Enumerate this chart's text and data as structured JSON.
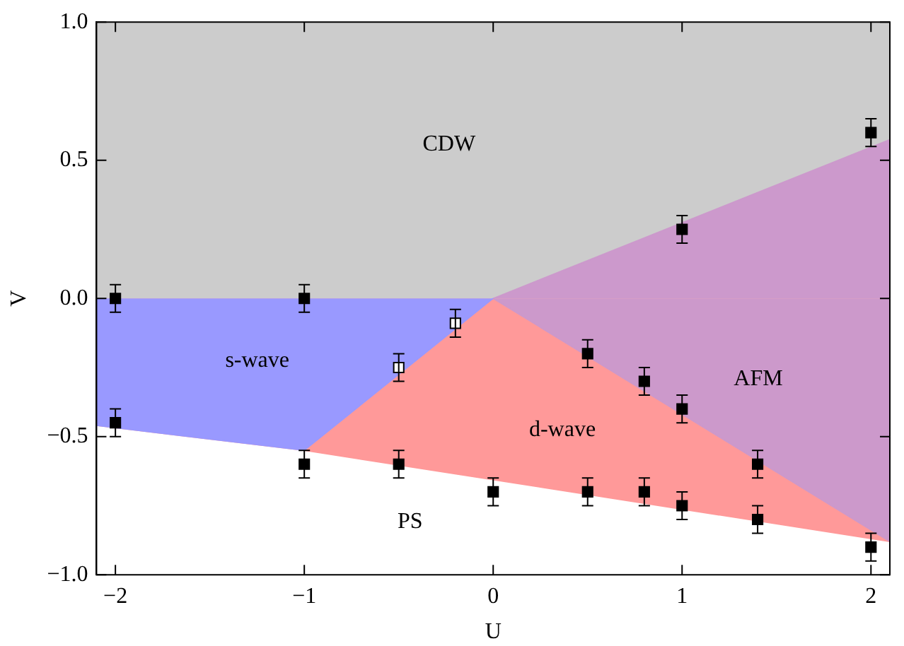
{
  "chart_data": {
    "type": "scatter",
    "xlabel": "U",
    "ylabel": "V",
    "xlim": [
      -2.1,
      2.1
    ],
    "ylim": [
      -1.0,
      1.0
    ],
    "xticks": [
      {
        "value": -2,
        "label": "−2"
      },
      {
        "value": -1,
        "label": "−1"
      },
      0,
      1,
      2
    ],
    "yticks": [
      {
        "value": -1,
        "label": "−1.0"
      },
      {
        "value": -0.5,
        "label": "−0.5"
      },
      {
        "value": 0,
        "label": "0.0"
      },
      {
        "value": 0.5,
        "label": "0.5"
      },
      {
        "value": 1,
        "label": "1.0"
      }
    ],
    "grid": false,
    "legend": false,
    "series": [
      {
        "type": "area",
        "name": "CDW",
        "color": "#cccccc",
        "x": [
          -2.1,
          2.1
        ],
        "values": [
          1,
          1
        ]
      },
      {
        "type": "area",
        "name": "PS",
        "color": "#ffffff",
        "x": [
          -2.1,
          2.1
        ],
        "values": [
          -1,
          -1
        ]
      },
      {
        "type": "area",
        "name": "d-wave",
        "color": "#ff9999",
        "x": [
          -2.1,
          -1,
          2.1
        ],
        "values": [
          -0.46,
          -0.55,
          -0.88
        ]
      },
      {
        "type": "area",
        "color": "#cc99cc",
        "x": [
          0,
          2.1
        ],
        "values": [
          0,
          0.575
        ]
      },
      {
        "type": "area",
        "name": "AFM",
        "color": "#cc99cb",
        "x": [
          0,
          2.1
        ],
        "values": [
          0,
          -0.88
        ]
      },
      {
        "type": "area",
        "name": "s-wave",
        "color": "#9999ff",
        "x": [
          -2.1,
          -1,
          0
        ],
        "values": [
          -0.46,
          -0.55,
          0
        ]
      },
      {
        "marker": "square",
        "color": "#000000",
        "x": [
          -2,
          -1,
          -2,
          -1,
          -0.5,
          0,
          0.5,
          0.5,
          0.8,
          0.8,
          1,
          1,
          1,
          1.4,
          1.4,
          2,
          2
        ],
        "values": [
          0,
          0,
          -0.45,
          -0.6,
          -0.6,
          -0.7,
          -0.2,
          -0.7,
          -0.3,
          -0.7,
          0.25,
          -0.4,
          -0.75,
          -0.6,
          -0.8,
          0.6,
          -0.9
        ],
        "errors": [
          0.05,
          0.05,
          0.05,
          0.05,
          0.05,
          0.05,
          0.05,
          0.05,
          0.05,
          0.05,
          0.05,
          0.05,
          0.05,
          0.05,
          0.05,
          0.05,
          0.05
        ]
      },
      {
        "marker": "square",
        "color": "#ffffff",
        "x": [
          -0.5,
          -0.2
        ],
        "values": [
          -0.25,
          -0.09
        ],
        "errors": [
          0.05,
          0.05
        ]
      }
    ]
  }
}
